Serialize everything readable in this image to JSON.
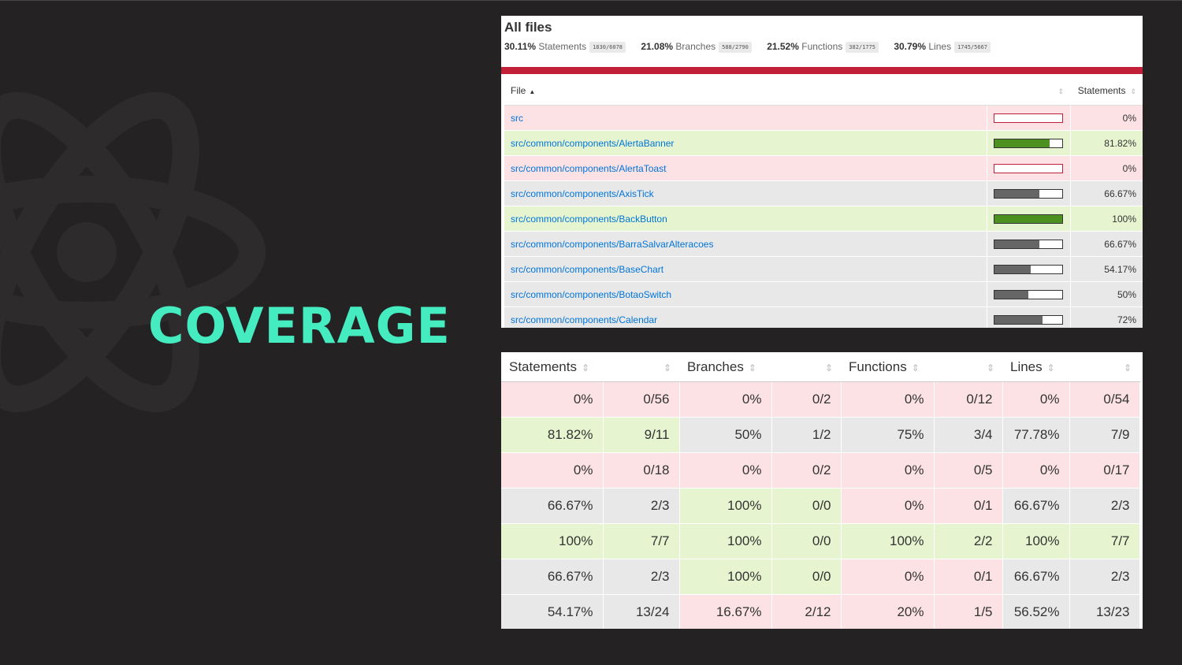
{
  "slide_title": "COVERAGE",
  "report": {
    "title": "All files",
    "summary": [
      {
        "pct": "30.11%",
        "label": "Statements",
        "frac": "1830/6078"
      },
      {
        "pct": "21.08%",
        "label": "Branches",
        "frac": "588/2790"
      },
      {
        "pct": "21.52%",
        "label": "Functions",
        "frac": "382/1775"
      },
      {
        "pct": "30.79%",
        "label": "Lines",
        "frac": "1745/5667"
      }
    ],
    "columns": {
      "file": "File",
      "statements": "Statements"
    },
    "rows": [
      {
        "file": "src",
        "pct": "0%",
        "fraction": 0,
        "level": "low"
      },
      {
        "file": "src/common/components/AlertaBanner",
        "pct": "81.82%",
        "fraction": 0.8182,
        "level": "high"
      },
      {
        "file": "src/common/components/AlertaToast",
        "pct": "0%",
        "fraction": 0,
        "level": "low"
      },
      {
        "file": "src/common/components/AxisTick",
        "pct": "66.67%",
        "fraction": 0.6667,
        "level": "medium"
      },
      {
        "file": "src/common/components/BackButton",
        "pct": "100%",
        "fraction": 1,
        "level": "high"
      },
      {
        "file": "src/common/components/BarraSalvarAlteracoes",
        "pct": "66.67%",
        "fraction": 0.6667,
        "level": "medium"
      },
      {
        "file": "src/common/components/BaseChart",
        "pct": "54.17%",
        "fraction": 0.5417,
        "level": "medium"
      },
      {
        "file": "src/common/components/BotaoSwitch",
        "pct": "50%",
        "fraction": 0.5,
        "level": "medium"
      },
      {
        "file": "src/common/components/Calendar",
        "pct": "72%",
        "fraction": 0.72,
        "level": "medium"
      }
    ]
  },
  "metrics": {
    "headers": [
      "Statements",
      "Branches",
      "Functions",
      "Lines"
    ],
    "rows": [
      [
        {
          "v": "0%",
          "l": "low"
        },
        {
          "v": "0/56",
          "l": "low"
        },
        {
          "v": "0%",
          "l": "low"
        },
        {
          "v": "0/2",
          "l": "low"
        },
        {
          "v": "0%",
          "l": "low"
        },
        {
          "v": "0/12",
          "l": "low"
        },
        {
          "v": "0%",
          "l": "low"
        },
        {
          "v": "0/54",
          "l": "low"
        }
      ],
      [
        {
          "v": "81.82%",
          "l": "high"
        },
        {
          "v": "9/11",
          "l": "high"
        },
        {
          "v": "50%",
          "l": "medium"
        },
        {
          "v": "1/2",
          "l": "medium"
        },
        {
          "v": "75%",
          "l": "medium"
        },
        {
          "v": "3/4",
          "l": "medium"
        },
        {
          "v": "77.78%",
          "l": "medium"
        },
        {
          "v": "7/9",
          "l": "medium"
        }
      ],
      [
        {
          "v": "0%",
          "l": "low"
        },
        {
          "v": "0/18",
          "l": "low"
        },
        {
          "v": "0%",
          "l": "low"
        },
        {
          "v": "0/2",
          "l": "low"
        },
        {
          "v": "0%",
          "l": "low"
        },
        {
          "v": "0/5",
          "l": "low"
        },
        {
          "v": "0%",
          "l": "low"
        },
        {
          "v": "0/17",
          "l": "low"
        }
      ],
      [
        {
          "v": "66.67%",
          "l": "medium"
        },
        {
          "v": "2/3",
          "l": "medium"
        },
        {
          "v": "100%",
          "l": "high"
        },
        {
          "v": "0/0",
          "l": "high"
        },
        {
          "v": "0%",
          "l": "low"
        },
        {
          "v": "0/1",
          "l": "low"
        },
        {
          "v": "66.67%",
          "l": "medium"
        },
        {
          "v": "2/3",
          "l": "medium"
        }
      ],
      [
        {
          "v": "100%",
          "l": "high"
        },
        {
          "v": "7/7",
          "l": "high"
        },
        {
          "v": "100%",
          "l": "high"
        },
        {
          "v": "0/0",
          "l": "high"
        },
        {
          "v": "100%",
          "l": "high"
        },
        {
          "v": "2/2",
          "l": "high"
        },
        {
          "v": "100%",
          "l": "high"
        },
        {
          "v": "7/7",
          "l": "high"
        }
      ],
      [
        {
          "v": "66.67%",
          "l": "medium"
        },
        {
          "v": "2/3",
          "l": "medium"
        },
        {
          "v": "100%",
          "l": "high"
        },
        {
          "v": "0/0",
          "l": "high"
        },
        {
          "v": "0%",
          "l": "low"
        },
        {
          "v": "0/1",
          "l": "low"
        },
        {
          "v": "66.67%",
          "l": "medium"
        },
        {
          "v": "2/3",
          "l": "medium"
        }
      ],
      [
        {
          "v": "54.17%",
          "l": "medium"
        },
        {
          "v": "13/24",
          "l": "medium"
        },
        {
          "v": "16.67%",
          "l": "low"
        },
        {
          "v": "2/12",
          "l": "low"
        },
        {
          "v": "20%",
          "l": "low"
        },
        {
          "v": "1/5",
          "l": "low"
        },
        {
          "v": "56.52%",
          "l": "medium"
        },
        {
          "v": "13/23",
          "l": "medium"
        }
      ]
    ]
  },
  "colors": {
    "accent": "#45ecc0",
    "low": "#fce1e5",
    "high": "#e6f5d0",
    "medium": "#e8e8e8",
    "redbar": "#c21f39",
    "link": "#0074d9"
  }
}
